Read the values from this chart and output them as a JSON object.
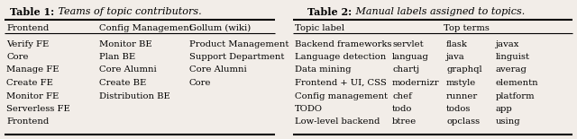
{
  "table1": {
    "title_bold": "Table 1:",
    "title_italic": " Teams of topic contributors.",
    "headers": [
      "Frontend",
      "Config Management",
      "Gollum (wiki)"
    ],
    "rows": [
      [
        "Verify FE",
        "Monitor BE",
        "Product Management"
      ],
      [
        "Core",
        "Plan BE",
        "Support Department"
      ],
      [
        "Manage FE",
        "Core Alumni",
        "Core Alumni"
      ],
      [
        "Create FE",
        "Create BE",
        "Core"
      ],
      [
        "Monitor FE",
        "Distribution BE",
        ""
      ],
      [
        "Serverless FE",
        "",
        ""
      ],
      [
        "Frontend",
        "",
        ""
      ]
    ]
  },
  "table2": {
    "title_bold": "Table 2:",
    "title_italic": " Manual labels assigned to topics.",
    "headers": [
      "Topic label",
      "",
      "",
      "Top terms",
      "",
      ""
    ],
    "rows": [
      [
        "Backend frameworks",
        "servlet",
        "",
        "flask",
        "",
        "javax"
      ],
      [
        "Language detection",
        "languag",
        "",
        "java",
        "",
        "linguist"
      ],
      [
        "Data mining",
        "chartj",
        "",
        "graphql",
        "",
        "averag"
      ],
      [
        "Frontend + UI, CSS",
        "modernizr",
        "",
        "mstyle",
        "",
        "elementn"
      ],
      [
        "Config management",
        "chef",
        "",
        "runner",
        "",
        "platform"
      ],
      [
        "TODO",
        "todo",
        "",
        "todos",
        "",
        "app"
      ],
      [
        "Low-level backend",
        "btree",
        "",
        "opclass",
        "",
        "using"
      ]
    ]
  },
  "bg_color": "#f2ede8",
  "font_size": 7.2,
  "title_font_size": 8.0
}
